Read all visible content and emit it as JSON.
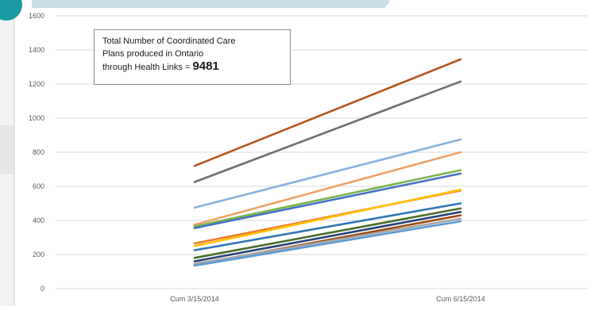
{
  "annotation": {
    "line1": "Total Number of Coordinated Care",
    "line2": "Plans produced  in Ontario",
    "line3": "through Health Links  =",
    "value": "9481"
  },
  "chart_data": {
    "type": "line",
    "title": "",
    "xlabel": "",
    "ylabel": "",
    "categories": [
      "Cum 3/15/2014",
      "Cum 6/15/2014"
    ],
    "ylim": [
      0,
      1600
    ],
    "yticks": [
      0,
      200,
      400,
      600,
      800,
      1000,
      1200,
      1400,
      1600
    ],
    "grid": true,
    "legend": "none",
    "series": [
      {
        "color": "#b5541f",
        "values": [
          720,
          1345
        ]
      },
      {
        "color": "#6e6e6e",
        "values": [
          625,
          1215
        ]
      },
      {
        "color": "#86b2de",
        "values": [
          475,
          875
        ]
      },
      {
        "color": "#f0a166",
        "values": [
          375,
          800
        ]
      },
      {
        "color": "#7bb44e",
        "values": [
          365,
          695
        ]
      },
      {
        "color": "#4472c4",
        "values": [
          355,
          675
        ]
      },
      {
        "color": "#ed7d31",
        "values": [
          265,
          575
        ]
      },
      {
        "color": "#ffc000",
        "values": [
          250,
          580
        ]
      },
      {
        "color": "#2e75b6",
        "values": [
          225,
          500
        ]
      },
      {
        "color": "#4a6e2a",
        "values": [
          180,
          470
        ]
      },
      {
        "color": "#264478",
        "values": [
          160,
          450
        ]
      },
      {
        "color": "#9e480e",
        "values": [
          140,
          430
        ]
      },
      {
        "color": "#a5a5a5",
        "values": [
          145,
          410
        ]
      },
      {
        "color": "#5b9bd5",
        "values": [
          135,
          395
        ]
      }
    ]
  }
}
